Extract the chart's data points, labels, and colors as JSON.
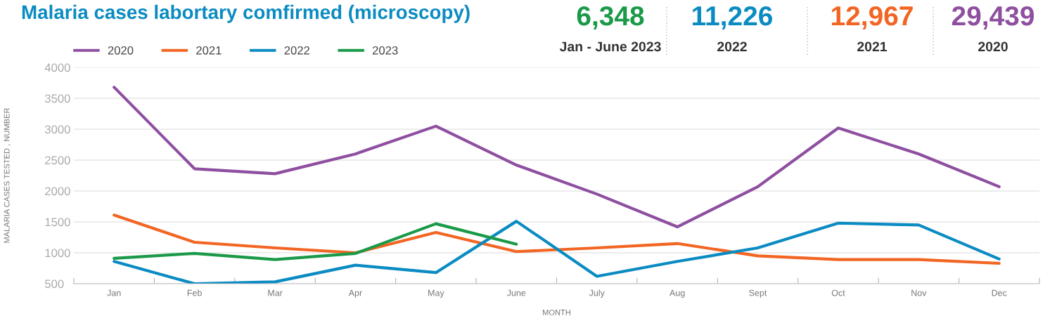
{
  "chart_data": {
    "type": "line",
    "title": "Malaria cases labortary comfirmed (microscopy)",
    "xlabel": "MONTH",
    "ylabel": "MALARIA CASES TESTED , NUMBER",
    "categories": [
      "Jan",
      "Feb",
      "Mar",
      "Apr",
      "May",
      "June",
      "July",
      "Aug",
      "Sept",
      "Oct",
      "Nov",
      "Dec"
    ],
    "series": [
      {
        "name": "2020",
        "color": "#8e4fa0",
        "values": [
          3680,
          2360,
          2280,
          2600,
          3050,
          2420,
          1950,
          1420,
          2070,
          3020,
          2600,
          2070
        ]
      },
      {
        "name": "2021",
        "color": "#f26522",
        "values": [
          1610,
          1170,
          1080,
          1000,
          1330,
          1020,
          1080,
          1150,
          950,
          890,
          890,
          830
        ]
      },
      {
        "name": "2022",
        "color": "#0a8bc2",
        "values": [
          860,
          500,
          530,
          800,
          680,
          1510,
          620,
          860,
          1080,
          1480,
          1450,
          900
        ]
      },
      {
        "name": "2023",
        "color": "#1a9a48",
        "values": [
          910,
          990,
          890,
          990,
          1470,
          1140,
          null,
          null,
          null,
          null,
          null,
          null
        ]
      }
    ],
    "ylim": [
      500,
      4000
    ],
    "yticks": [
      500,
      1000,
      1500,
      2000,
      2500,
      3000,
      3500,
      4000
    ],
    "grid": "y",
    "legend": "top left",
    "line_style": "solid",
    "marker": "none",
    "annotations": [
      "6,348",
      "Jan - June 2023",
      "11,226",
      "2022",
      "12,967",
      "2021",
      "29,439",
      "2020"
    ]
  }
}
